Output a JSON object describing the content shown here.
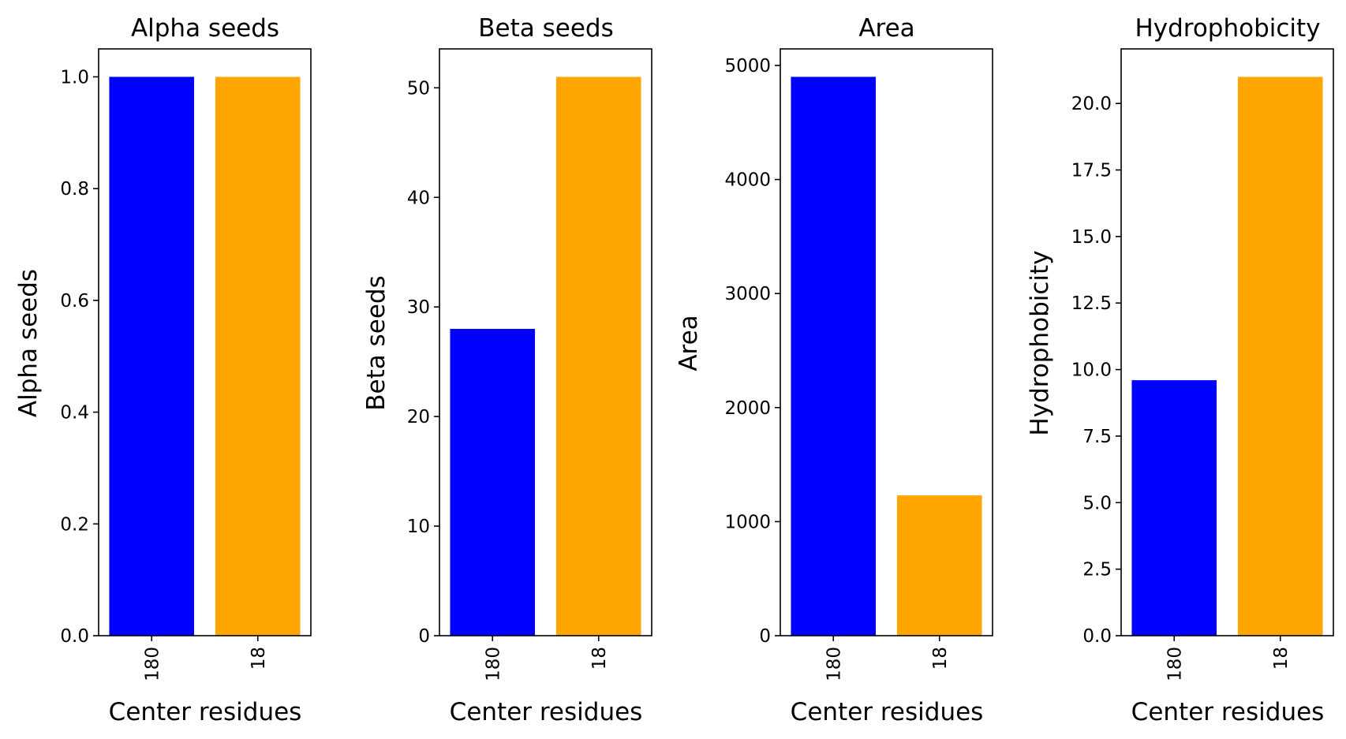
{
  "chart_data": [
    {
      "type": "bar",
      "title": "Alpha seeds",
      "xlabel": "Center residues",
      "ylabel": "Alpha seeds",
      "categories": [
        "180",
        "18"
      ],
      "values": [
        1,
        1
      ],
      "colors": [
        "#0000ff",
        "#ffa500"
      ],
      "ylim": [
        0,
        1.05
      ],
      "yticks": [
        0.0,
        0.2,
        0.4,
        0.6,
        0.8,
        1.0
      ],
      "ytick_labels": [
        "0.0",
        "0.2",
        "0.4",
        "0.6",
        "0.8",
        "1.0"
      ],
      "grid": false,
      "legend": "none"
    },
    {
      "type": "bar",
      "title": "Beta seeds",
      "xlabel": "Center residues",
      "ylabel": "Beta seeds",
      "categories": [
        "180",
        "18"
      ],
      "values": [
        28,
        51
      ],
      "colors": [
        "#0000ff",
        "#ffa500"
      ],
      "ylim": [
        0,
        53.55
      ],
      "yticks": [
        0,
        10,
        20,
        30,
        40,
        50
      ],
      "ytick_labels": [
        "0",
        "10",
        "20",
        "30",
        "40",
        "50"
      ],
      "grid": false,
      "legend": "none"
    },
    {
      "type": "bar",
      "title": "Area",
      "xlabel": "Center residues",
      "ylabel": "Area",
      "categories": [
        "180",
        "18"
      ],
      "values": [
        4900,
        1230
      ],
      "colors": [
        "#0000ff",
        "#ffa500"
      ],
      "ylim": [
        0,
        5145
      ],
      "yticks": [
        0,
        1000,
        2000,
        3000,
        4000,
        5000
      ],
      "ytick_labels": [
        "0",
        "1000",
        "2000",
        "3000",
        "4000",
        "5000"
      ],
      "grid": false,
      "legend": "none"
    },
    {
      "type": "bar",
      "title": "Hydrophobicity",
      "xlabel": "Center residues",
      "ylabel": "Hydrophobicity",
      "categories": [
        "180",
        "18"
      ],
      "values": [
        9.6,
        21.0
      ],
      "colors": [
        "#0000ff",
        "#ffa500"
      ],
      "ylim": [
        0,
        22.05
      ],
      "yticks": [
        0.0,
        2.5,
        5.0,
        7.5,
        10.0,
        12.5,
        15.0,
        17.5,
        20.0
      ],
      "ytick_labels": [
        "0.0",
        "2.5",
        "5.0",
        "7.5",
        "10.0",
        "12.5",
        "15.0",
        "17.5",
        "20.0"
      ],
      "grid": false,
      "legend": "none"
    }
  ]
}
